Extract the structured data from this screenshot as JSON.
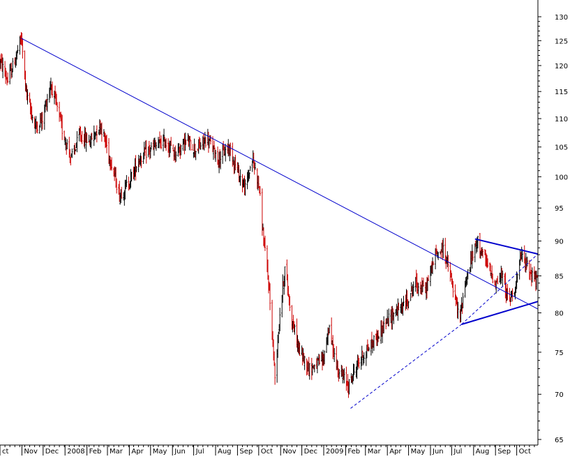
{
  "chart_data": {
    "type": "candlestick",
    "title": "",
    "xlabel": "",
    "ylabel": "",
    "y_scale": "log",
    "ylim": [
      64,
      135
    ],
    "y_ticks": [
      65,
      70,
      75,
      80,
      85,
      90,
      95,
      100,
      105,
      110,
      115,
      120,
      125,
      130
    ],
    "x_ticks": [
      "ct",
      "Nov",
      "Dec",
      "2008",
      "Feb",
      "Mar",
      "Apr",
      "May",
      "Jun",
      "Jul",
      "Aug",
      "Sep",
      "Oct",
      "Nov",
      "Dec",
      "2009",
      "Feb",
      "Mar",
      "Apr",
      "May",
      "Jun",
      "Jul",
      "Aug",
      "Sep",
      "Oct"
    ],
    "month_starts": [
      "2007-10-01",
      "2007-11-01",
      "2007-12-01",
      "2008-01-01",
      "2008-02-01",
      "2008-03-01",
      "2008-04-01",
      "2008-05-01",
      "2008-06-01",
      "2008-07-01",
      "2008-08-01",
      "2008-09-01",
      "2008-10-01",
      "2008-11-01",
      "2008-12-01",
      "2009-01-01",
      "2009-02-01",
      "2009-03-01",
      "2009-04-01",
      "2009-05-01",
      "2009-06-01",
      "2009-07-01",
      "2009-08-01",
      "2009-09-01",
      "2009-10-01"
    ],
    "x_range": [
      "2007-10-01",
      "2009-10-31"
    ],
    "up_color": "#000000",
    "down_color": "#cc0000",
    "price_path": [
      [
        "2007-10-01",
        121
      ],
      [
        "2007-10-12",
        117
      ],
      [
        "2007-10-22",
        121
      ],
      [
        "2007-10-31",
        125.5
      ],
      [
        "2007-11-08",
        114
      ],
      [
        "2007-11-20",
        108.5
      ],
      [
        "2007-11-30",
        110
      ],
      [
        "2007-12-12",
        116.5
      ],
      [
        "2007-12-28",
        108
      ],
      [
        "2008-01-10",
        103
      ],
      [
        "2008-01-22",
        107
      ],
      [
        "2008-02-05",
        106
      ],
      [
        "2008-02-20",
        109
      ],
      [
        "2008-03-05",
        103
      ],
      [
        "2008-03-18",
        97
      ],
      [
        "2008-03-31",
        99
      ],
      [
        "2008-04-15",
        103
      ],
      [
        "2008-04-30",
        104.5
      ],
      [
        "2008-05-20",
        106
      ],
      [
        "2008-06-05",
        104
      ],
      [
        "2008-06-20",
        106
      ],
      [
        "2008-07-05",
        104.5
      ],
      [
        "2008-07-20",
        106.5
      ],
      [
        "2008-08-05",
        103
      ],
      [
        "2008-08-20",
        105
      ],
      [
        "2008-09-01",
        101
      ],
      [
        "2008-09-12",
        98
      ],
      [
        "2008-09-22",
        103
      ],
      [
        "2008-10-01",
        99
      ],
      [
        "2008-10-08",
        90
      ],
      [
        "2008-10-15",
        84
      ],
      [
        "2008-10-24",
        72
      ],
      [
        "2008-10-31",
        80
      ],
      [
        "2008-11-07",
        86
      ],
      [
        "2008-11-17",
        79
      ],
      [
        "2008-11-28",
        75
      ],
      [
        "2008-12-12",
        73
      ],
      [
        "2008-12-31",
        74
      ],
      [
        "2009-01-08",
        78
      ],
      [
        "2009-01-20",
        73
      ],
      [
        "2009-02-05",
        71
      ],
      [
        "2009-02-20",
        74
      ],
      [
        "2009-03-10",
        76
      ],
      [
        "2009-03-25",
        78
      ],
      [
        "2009-04-10",
        80
      ],
      [
        "2009-04-25",
        81
      ],
      [
        "2009-05-10",
        84
      ],
      [
        "2009-05-25",
        83
      ],
      [
        "2009-06-08",
        88
      ],
      [
        "2009-06-20",
        89
      ],
      [
        "2009-07-01",
        84
      ],
      [
        "2009-07-12",
        79
      ],
      [
        "2009-07-20",
        84
      ],
      [
        "2009-07-31",
        88
      ],
      [
        "2009-08-07",
        90
      ],
      [
        "2009-08-20",
        86.5
      ],
      [
        "2009-09-01",
        84
      ],
      [
        "2009-09-10",
        85
      ],
      [
        "2009-09-20",
        81.5
      ],
      [
        "2009-09-30",
        84
      ],
      [
        "2009-10-08",
        88
      ],
      [
        "2009-10-18",
        86
      ],
      [
        "2009-10-31",
        84
      ]
    ],
    "lines": [
      {
        "style": "solid",
        "width": 1,
        "from": [
          "2007-10-31",
          125.5
        ],
        "to": [
          "2009-10-31",
          80.5
        ]
      },
      {
        "style": "solid",
        "width": 2,
        "from": [
          "2009-08-03",
          90.3
        ],
        "to": [
          "2009-10-31",
          88.1
        ]
      },
      {
        "style": "solid",
        "width": 2,
        "from": [
          "2009-07-15",
          78.5
        ],
        "to": [
          "2009-10-31",
          81.5
        ]
      },
      {
        "style": "dashed",
        "width": 1,
        "from": [
          "2009-02-08",
          68.4
        ],
        "to": [
          "2009-07-15",
          78.5
        ]
      },
      {
        "style": "dashed",
        "width": 1,
        "from": [
          "2009-07-15",
          78.5
        ],
        "to": [
          "2009-10-31",
          88.1
        ]
      }
    ],
    "line_color": "#0000cc"
  }
}
